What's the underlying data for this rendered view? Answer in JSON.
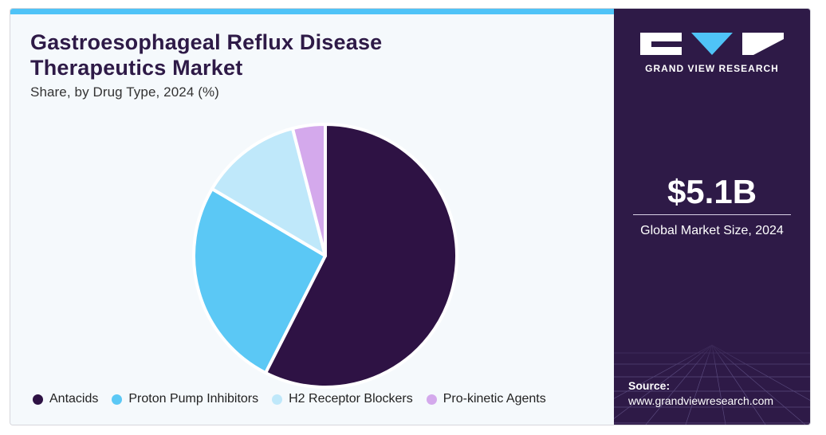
{
  "header": {
    "title": "Gastroesophageal Reflux Disease Therapeutics Market",
    "subtitle": "Share, by Drug Type, 2024 (%)"
  },
  "colors": {
    "accent_bar": "#4fc3f7",
    "panel": "#2e1a47"
  },
  "chart_data": {
    "type": "pie",
    "title": "Gastroesophageal Reflux Disease Therapeutics Market",
    "subtitle": "Share, by Drug Type, 2024 (%)",
    "categories": [
      "Antacids",
      "Proton Pump Inhibitors",
      "H2 Receptor Blockers",
      "Pro-kinetic Agents"
    ],
    "values": [
      57.5,
      26.0,
      12.5,
      4.0
    ],
    "colors": [
      "#2e1244",
      "#5bc8f5",
      "#bfe8fa",
      "#d4a9ec"
    ],
    "legend_position": "bottom",
    "start_angle_deg": 0,
    "direction": "clockwise"
  },
  "side_panel": {
    "brand": "GRAND VIEW RESEARCH",
    "metric_value": "$5.1B",
    "metric_label": "Global Market Size, 2024",
    "source_label": "Source:",
    "source_url": "www.grandviewresearch.com"
  }
}
